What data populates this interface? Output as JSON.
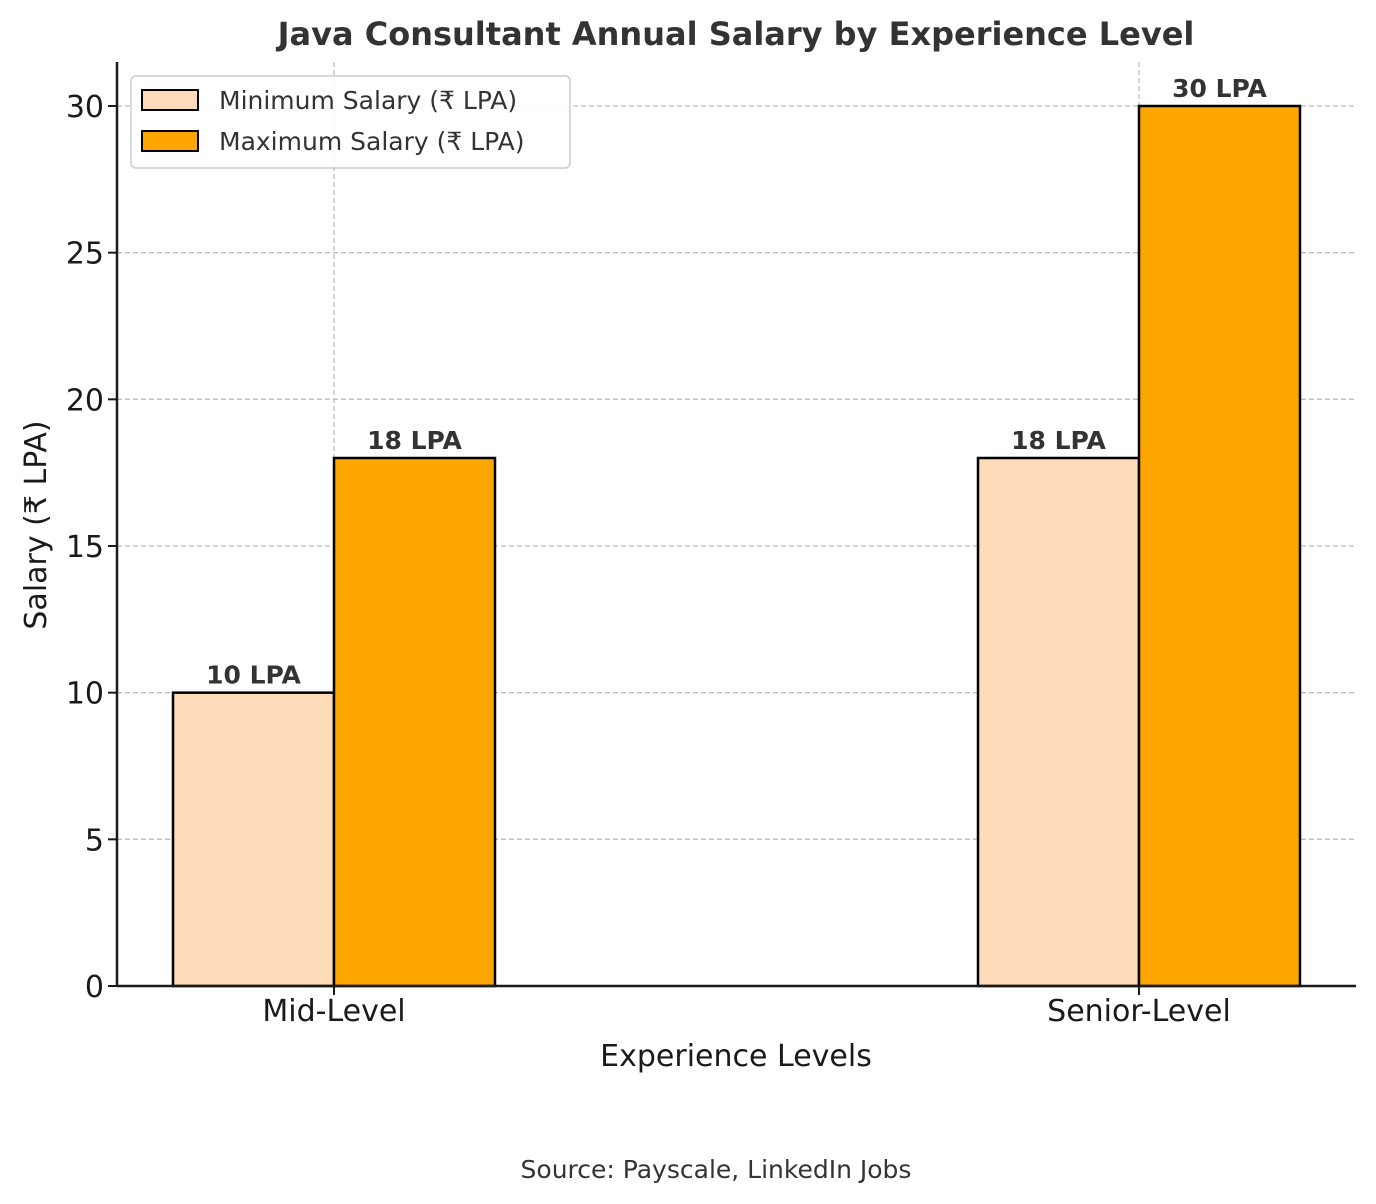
{
  "chart_data": {
    "type": "bar",
    "title": "Java Consultant Annual Salary by Experience Level",
    "xlabel": "Experience Levels",
    "ylabel": "Salary (₹ LPA)",
    "categories": [
      "Mid-Level",
      "Senior-Level"
    ],
    "series": [
      {
        "name": "Minimum Salary (₹ LPA)",
        "values": [
          10,
          18
        ],
        "labels": [
          "10 LPA",
          "18 LPA"
        ],
        "color": "#FDDBB9"
      },
      {
        "name": "Maximum Salary (₹ LPA)",
        "values": [
          18,
          30
        ],
        "labels": [
          "18 LPA",
          "30 LPA"
        ],
        "color": "#FFA500"
      }
    ],
    "ylim": [
      0,
      31.5
    ],
    "yticks": [
      0,
      5,
      10,
      15,
      20,
      25,
      30
    ],
    "grid": true,
    "legend_position": "top-left",
    "source": "Source: Payscale, LinkedIn Jobs"
  }
}
